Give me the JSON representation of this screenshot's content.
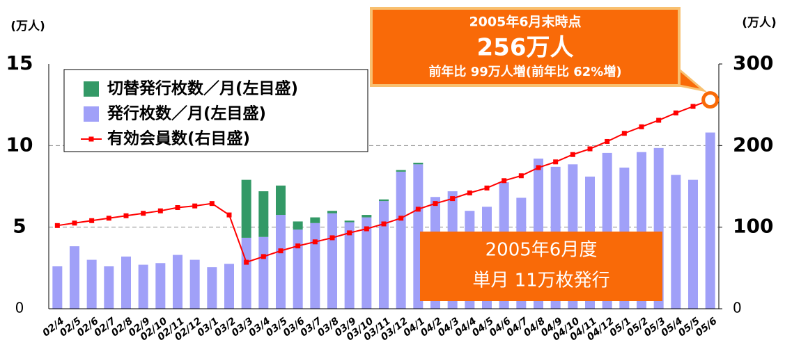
{
  "chart_data": {
    "type": "bar_line",
    "y_unit_label": "(万人)",
    "y2_unit_label": "(万人)",
    "categories": [
      "02/4",
      "02/5",
      "02/6",
      "02/7",
      "02/8",
      "02/9",
      "02/10",
      "02/11",
      "02/12",
      "03/1",
      "03/2",
      "03/3",
      "03/4",
      "03/5",
      "03/6",
      "03/7",
      "03/8",
      "03/9",
      "03/10",
      "03/11",
      "03/12",
      "04/1",
      "04/2",
      "04/3",
      "04/4",
      "04/5",
      "04/6",
      "04/7",
      "04/8",
      "04/9",
      "04/10",
      "04/11",
      "04/12",
      "05/1",
      "05/2",
      "05/3",
      "05/4",
      "05/5",
      "05/6"
    ],
    "series": [
      {
        "name": "切替発行枚数／月(左目盛)",
        "color": "#339966",
        "type": "bar",
        "values": [
          0,
          0,
          0,
          0,
          0,
          0,
          0,
          0,
          0,
          0,
          0,
          3.55,
          2.8,
          1.8,
          0.5,
          0.35,
          0.15,
          0.1,
          0.15,
          0.1,
          0.1,
          0.1,
          0,
          0,
          0,
          0,
          0,
          0,
          0,
          0,
          0,
          0,
          0,
          0,
          0,
          0,
          0,
          0,
          0
        ]
      },
      {
        "name": "発行枚数／月(左目盛)",
        "color": "#a0a0f8",
        "type": "bar",
        "values": [
          2.6,
          3.83,
          3.0,
          2.6,
          3.2,
          2.7,
          2.8,
          3.3,
          3.0,
          2.55,
          2.75,
          4.35,
          4.4,
          5.75,
          4.85,
          5.25,
          5.85,
          5.3,
          5.6,
          6.6,
          8.4,
          8.85,
          6.85,
          7.2,
          6.0,
          6.25,
          7.75,
          6.8,
          9.2,
          8.7,
          8.85,
          8.1,
          9.55,
          8.65,
          9.6,
          9.85,
          8.2,
          7.9,
          10.8
        ]
      },
      {
        "name": "有効会員数(右目盛)",
        "color": "#ff0000",
        "type": "line",
        "axis": "y2",
        "values": [
          102,
          105,
          108,
          111,
          114,
          117,
          120,
          124,
          126,
          129,
          115,
          57,
          64,
          71,
          77,
          82,
          87,
          93,
          98,
          104,
          111,
          122,
          129,
          135,
          142,
          148,
          157,
          163,
          173,
          180,
          189,
          196,
          205,
          215,
          223,
          231,
          240,
          248,
          256
        ]
      }
    ],
    "ylim": [
      0,
      15
    ],
    "yticks": [
      0,
      5,
      10,
      15
    ],
    "y2lim": [
      0,
      300
    ],
    "y2ticks": [
      0,
      100,
      200,
      300
    ],
    "grid": true,
    "legend": "upper left",
    "annotations": {
      "callout": [
        "2005年6月末時点",
        "256万人",
        "前年比 99万人増(前年比 62%増)"
      ],
      "box": [
        "2005年6月度",
        "単月 11万枚発行"
      ]
    }
  }
}
